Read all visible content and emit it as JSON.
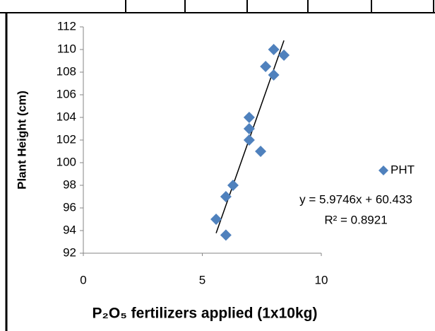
{
  "chart_data": {
    "type": "scatter",
    "x_label": "P₂O₅ fertilizers applied (1x10kg)",
    "y_label": "Plant Height (cm)",
    "series": [
      {
        "name": "PHT",
        "color": "#4f81bd",
        "x": [
          8.0,
          8.43,
          7.66,
          8.0,
          6.97,
          6.97,
          6.97,
          7.45,
          6.29,
          5.99,
          5.58,
          5.99
        ],
        "values": [
          110,
          109.5,
          108.5,
          107.75,
          104,
          103,
          102,
          101,
          98,
          97,
          95,
          93.6
        ]
      }
    ],
    "trendline": {
      "slope": 5.9746,
      "intercept": 60.433,
      "color": "#000000",
      "label": "y = 5.9746x + 60.433",
      "r_squared_label": "R² = 0.8921"
    },
    "xlim": [
      0,
      10
    ],
    "xticks": [
      0,
      5,
      10
    ],
    "ylim": [
      92,
      112
    ],
    "yticks": [
      92,
      94,
      96,
      98,
      100,
      102,
      104,
      106,
      108,
      110,
      112
    ],
    "legend": "right"
  }
}
